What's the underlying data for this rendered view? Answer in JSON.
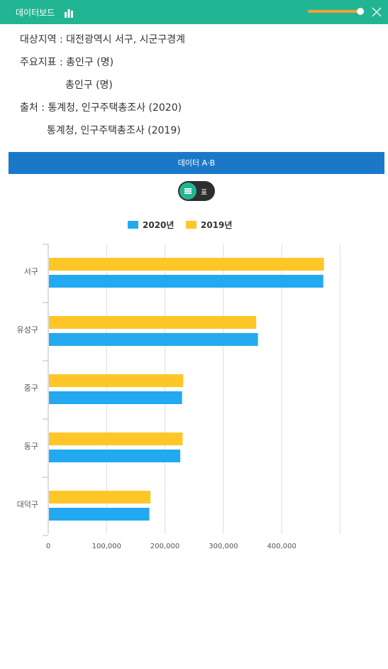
{
  "header": {
    "title": "데이터보드",
    "slider_value": 0.95,
    "colors": {
      "bar": "#22b593",
      "slider_fill": "#f0a132"
    }
  },
  "meta": {
    "region_label": "대상지역 : 대전광역시 서구, 시군구경계",
    "indicator_label": "주요지표 : 총인구 (명)",
    "indicator_label2": "총인구 (명)",
    "source_label": "출처 : 통계청, 인구주택총조사 (2020)",
    "source_label2": "통계청, 인구주택총조사 (2019)"
  },
  "tab": {
    "label": "데이터 A·B",
    "color": "#1b78c9"
  },
  "view_toggle": {
    "table_label": "표",
    "active": "chart"
  },
  "chart_data": {
    "type": "bar",
    "orientation": "horizontal",
    "categories": [
      "서구",
      "유성구",
      "중구",
      "동구",
      "대덕구"
    ],
    "series": [
      {
        "name": "2019년",
        "color": "#ffc627",
        "values": [
          471000,
          355000,
          230000,
          229000,
          174000
        ]
      },
      {
        "name": "2020년",
        "color": "#22a9ef",
        "values": [
          470000,
          358000,
          228000,
          225000,
          172000
        ]
      }
    ],
    "xlim": [
      0,
      500000
    ],
    "xticks": [
      0,
      100000,
      200000,
      300000,
      400000
    ],
    "xtick_labels": [
      "0",
      "100,000",
      "200,000",
      "300,000",
      "400,000"
    ],
    "legend": [
      "2020년",
      "2019년"
    ],
    "legend_position": "top-center",
    "grid": true
  }
}
